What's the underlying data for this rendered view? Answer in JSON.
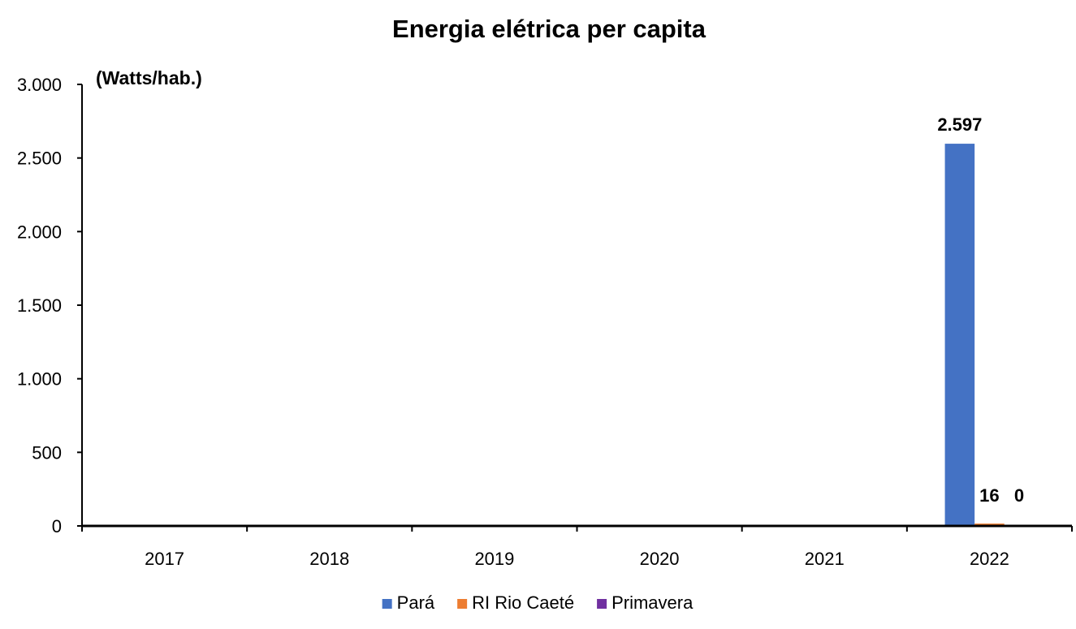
{
  "chart_data": {
    "type": "bar",
    "title": "Energia elétrica per capita",
    "unit_label": "(Watts/hab.)",
    "xlabel": "",
    "ylabel": "",
    "categories": [
      "2017",
      "2018",
      "2019",
      "2020",
      "2021",
      "2022"
    ],
    "ylim": [
      0,
      3000
    ],
    "yticks": [
      0,
      500,
      1000,
      1500,
      2000,
      2500,
      3000
    ],
    "ytick_labels": [
      "0",
      "500",
      "1.000",
      "1.500",
      "2.000",
      "2.500",
      "3.000"
    ],
    "grid": false,
    "legend_position": "bottom",
    "series": [
      {
        "name": "Pará",
        "color": "#4472C4",
        "values": [
          null,
          null,
          null,
          null,
          null,
          2597
        ],
        "data_labels": [
          "",
          "",
          "",
          "",
          "",
          "2.597"
        ]
      },
      {
        "name": "RI Rio Caeté",
        "color": "#ED7D31",
        "values": [
          null,
          null,
          null,
          null,
          null,
          16
        ],
        "data_labels": [
          "",
          "",
          "",
          "",
          "",
          "16"
        ]
      },
      {
        "name": "Primavera",
        "color": "#7030A0",
        "values": [
          null,
          null,
          null,
          null,
          null,
          0
        ],
        "data_labels": [
          "",
          "",
          "",
          "",
          "",
          "0"
        ]
      }
    ]
  }
}
